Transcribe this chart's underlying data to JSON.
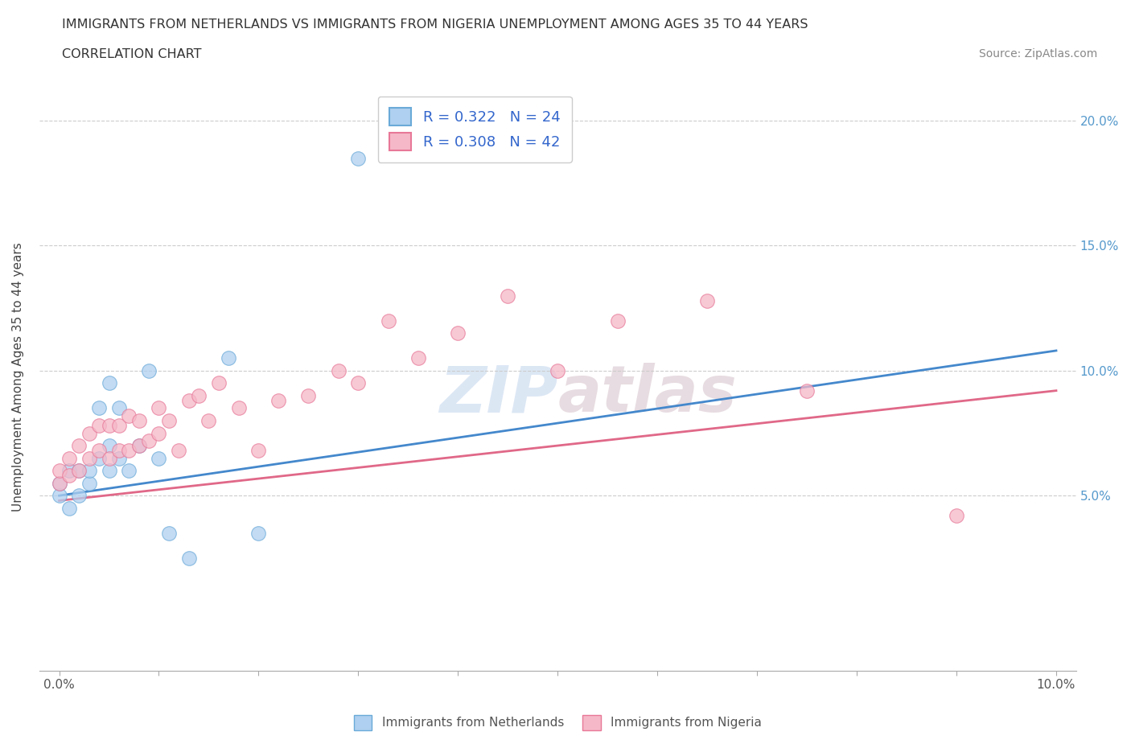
{
  "title_line1": "IMMIGRANTS FROM NETHERLANDS VS IMMIGRANTS FROM NIGERIA UNEMPLOYMENT AMONG AGES 35 TO 44 YEARS",
  "title_line2": "CORRELATION CHART",
  "source": "Source: ZipAtlas.com",
  "ylabel": "Unemployment Among Ages 35 to 44 years",
  "xlim": [
    -0.002,
    0.102
  ],
  "ylim": [
    -0.02,
    0.215
  ],
  "netherlands_color": "#afd0f0",
  "netherlands_edge_color": "#6aaad8",
  "nigeria_color": "#f5b8c8",
  "nigeria_edge_color": "#e87898",
  "netherlands_line_color": "#4488cc",
  "nigeria_line_color": "#e06888",
  "R_netherlands": "0.322",
  "N_netherlands": "24",
  "R_nigeria": "0.308",
  "N_nigeria": "42",
  "watermark": "ZIPatlas",
  "nl_x": [
    0.0,
    0.0,
    0.001,
    0.001,
    0.002,
    0.002,
    0.003,
    0.003,
    0.004,
    0.004,
    0.005,
    0.005,
    0.005,
    0.006,
    0.006,
    0.007,
    0.008,
    0.009,
    0.01,
    0.011,
    0.013,
    0.017,
    0.02,
    0.03
  ],
  "nl_y": [
    0.05,
    0.055,
    0.045,
    0.06,
    0.05,
    0.06,
    0.055,
    0.06,
    0.065,
    0.085,
    0.06,
    0.07,
    0.095,
    0.065,
    0.085,
    0.06,
    0.07,
    0.1,
    0.065,
    0.035,
    0.025,
    0.105,
    0.035,
    0.185
  ],
  "ng_x": [
    0.0,
    0.0,
    0.001,
    0.001,
    0.002,
    0.002,
    0.003,
    0.003,
    0.004,
    0.004,
    0.005,
    0.005,
    0.006,
    0.006,
    0.007,
    0.007,
    0.008,
    0.008,
    0.009,
    0.01,
    0.01,
    0.011,
    0.012,
    0.013,
    0.014,
    0.015,
    0.016,
    0.018,
    0.02,
    0.022,
    0.025,
    0.028,
    0.03,
    0.033,
    0.036,
    0.04,
    0.045,
    0.05,
    0.056,
    0.065,
    0.075,
    0.09
  ],
  "ng_y": [
    0.055,
    0.06,
    0.058,
    0.065,
    0.06,
    0.07,
    0.065,
    0.075,
    0.068,
    0.078,
    0.065,
    0.078,
    0.068,
    0.078,
    0.068,
    0.082,
    0.07,
    0.08,
    0.072,
    0.075,
    0.085,
    0.08,
    0.068,
    0.088,
    0.09,
    0.08,
    0.095,
    0.085,
    0.068,
    0.088,
    0.09,
    0.1,
    0.095,
    0.12,
    0.105,
    0.115,
    0.13,
    0.1,
    0.12,
    0.128,
    0.092,
    0.042
  ],
  "nl_trend_x": [
    0.0,
    0.1
  ],
  "nl_trend_y": [
    0.05,
    0.108
  ],
  "ng_trend_x": [
    0.0,
    0.1
  ],
  "ng_trend_y": [
    0.048,
    0.092
  ]
}
